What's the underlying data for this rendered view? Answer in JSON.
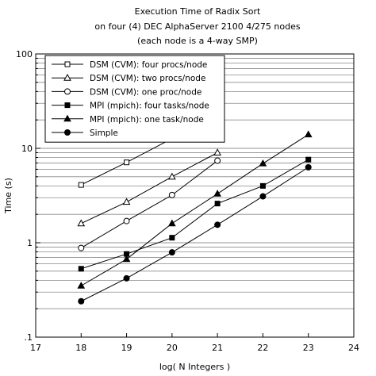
{
  "chart_data": {
    "type": "line",
    "title": "Execution Time of Radix Sort",
    "subtitle": [
      "on four (4) DEC AlphaServer 2100 4/275 nodes",
      "(each node is a 4-way SMP)"
    ],
    "xlabel": "log( N Integers )",
    "ylabel": "Time (s)",
    "xlim": [
      17,
      24
    ],
    "ylim": [
      0.1,
      100
    ],
    "yscale": "log",
    "x_ticks": [
      "17",
      "18",
      "19",
      "20",
      "21",
      "22",
      "23",
      "24"
    ],
    "y_ticks": [
      ".1",
      "1",
      "10",
      "100"
    ],
    "grid": "horizontal",
    "legend_position": "top-left",
    "series": [
      {
        "name": "DSM (CVM): four procs/node",
        "marker": "square-open",
        "x": [
          18,
          19,
          20
        ],
        "y": [
          4.1,
          7.1,
          12.7
        ]
      },
      {
        "name": "DSM (CVM): two procs/node",
        "marker": "triangle-open",
        "x": [
          18,
          19,
          20,
          21
        ],
        "y": [
          1.6,
          2.7,
          5.0,
          9.0
        ]
      },
      {
        "name": "DSM (CVM): one proc/node",
        "marker": "circle-open",
        "x": [
          18,
          19,
          20,
          21
        ],
        "y": [
          0.88,
          1.7,
          3.2,
          7.4
        ]
      },
      {
        "name": "MPI (mpich): four tasks/node",
        "marker": "square-filled",
        "x": [
          18,
          19,
          20,
          21,
          22,
          23
        ],
        "y": [
          0.53,
          0.76,
          1.13,
          2.6,
          4.0,
          7.6
        ]
      },
      {
        "name": "MPI (mpich): one task/node",
        "marker": "triangle-filled",
        "x": [
          18,
          19,
          20,
          21,
          22,
          23
        ],
        "y": [
          0.35,
          0.67,
          1.6,
          3.3,
          6.9,
          14.0
        ]
      },
      {
        "name": "Simple",
        "marker": "circle-filled",
        "x": [
          18,
          19,
          20,
          21,
          22,
          23
        ],
        "y": [
          0.24,
          0.42,
          0.79,
          1.55,
          3.1,
          6.3
        ]
      }
    ]
  }
}
